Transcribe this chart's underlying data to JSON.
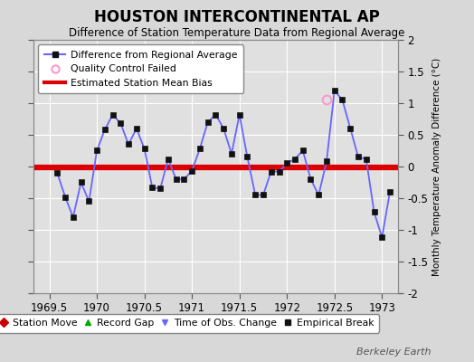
{
  "title": "HOUSTON INTERCONTINENTAL AP",
  "subtitle": "Difference of Station Temperature Data from Regional Average",
  "ylabel": "Monthly Temperature Anomaly Difference (°C)",
  "xlim": [
    1969.33,
    1973.17
  ],
  "ylim": [
    -2,
    2
  ],
  "yticks": [
    -2,
    -1.5,
    -1,
    -0.5,
    0,
    0.5,
    1,
    1.5,
    2
  ],
  "xticks": [
    1969.5,
    1970,
    1970.5,
    1971,
    1971.5,
    1972,
    1972.5,
    1973
  ],
  "xtick_labels": [
    "1969.5",
    "1970",
    "1970.5",
    "1971",
    "1971.5",
    "1972",
    "1972.5",
    "1973"
  ],
  "ytick_labels": [
    "-2",
    "-1.5",
    "-1",
    "-0.5",
    "0",
    "0.5",
    "1",
    "1.5",
    "2"
  ],
  "background_color": "#d8d8d8",
  "plot_bg_color": "#e0e0e0",
  "grid_color": "#ffffff",
  "line_color": "#6666ff",
  "marker_color": "#111111",
  "bias_color": "#dd0000",
  "bias_value": -0.02,
  "watermark": "Berkeley Earth",
  "months": [
    1969.583,
    1969.667,
    1969.75,
    1969.833,
    1969.917,
    1970.0,
    1970.083,
    1970.167,
    1970.25,
    1970.333,
    1970.417,
    1970.5,
    1970.583,
    1970.667,
    1970.75,
    1970.833,
    1970.917,
    1971.0,
    1971.083,
    1971.167,
    1971.25,
    1971.333,
    1971.417,
    1971.5,
    1971.583,
    1971.667,
    1971.75,
    1971.833,
    1971.917,
    1972.0,
    1972.083,
    1972.167,
    1972.25,
    1972.333,
    1972.417,
    1972.5,
    1972.583,
    1972.667,
    1972.75,
    1972.833,
    1972.917,
    1973.0,
    1973.083
  ],
  "values": [
    -0.1,
    -0.48,
    -0.8,
    -0.25,
    -0.55,
    0.25,
    0.58,
    0.82,
    0.68,
    0.35,
    0.6,
    0.28,
    -0.33,
    -0.35,
    0.12,
    -0.2,
    -0.2,
    -0.07,
    0.28,
    0.7,
    0.82,
    0.6,
    0.2,
    0.82,
    0.15,
    -0.45,
    -0.45,
    -0.08,
    -0.08,
    0.05,
    0.12,
    0.25,
    -0.2,
    -0.45,
    0.08,
    1.2,
    1.05,
    0.6,
    0.15,
    0.12,
    -0.72,
    -1.12,
    -0.4
  ],
  "qc_fail_x": [
    1972.417
  ],
  "qc_fail_y": [
    1.05
  ],
  "marker_size": 4,
  "line_width": 1.3,
  "bias_linewidth": 4.5
}
